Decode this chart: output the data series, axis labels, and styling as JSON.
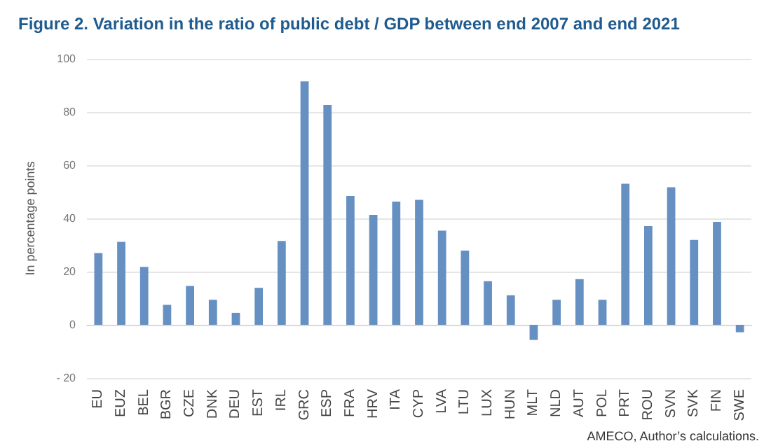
{
  "chart_data": {
    "type": "bar",
    "title": "Figure 2. Variation in the ratio of public debt / GDP between end 2007 and end 2021",
    "ylabel": "In percentage points",
    "categories": [
      "EU",
      "EUZ",
      "BEL",
      "BGR",
      "CZE",
      "DNK",
      "DEU",
      "EST",
      "IRL",
      "GRC",
      "ESP",
      "FRA",
      "HRV",
      "ITA",
      "CYP",
      "LVA",
      "LTU",
      "LUX",
      "HUN",
      "MLT",
      "NLD",
      "AUT",
      "POL",
      "PRT",
      "ROU",
      "SVN",
      "SVK",
      "FIN",
      "SWE"
    ],
    "values": [
      27.0,
      31.2,
      21.8,
      7.5,
      14.6,
      9.4,
      4.5,
      13.9,
      31.5,
      91.5,
      82.6,
      48.4,
      41.3,
      46.3,
      47.0,
      35.4,
      27.9,
      16.4,
      11.1,
      -5.7,
      9.4,
      17.2,
      9.4,
      53.0,
      37.1,
      51.7,
      31.9,
      38.7,
      -2.8
    ],
    "color": "#6690c2",
    "ylim": [
      -20,
      100
    ],
    "yticks": [
      {
        "value": -20,
        "label": "- 20"
      },
      0,
      20,
      40,
      60,
      80,
      100
    ],
    "grid": "y",
    "annotations": [
      "AMECO, Author’s calculations."
    ]
  }
}
